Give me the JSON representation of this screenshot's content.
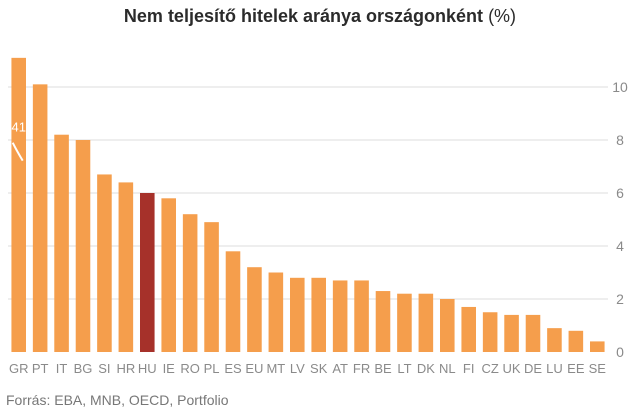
{
  "title": "Nem teljesítő hitelek aránya országonként",
  "title_unit": "(%)",
  "source": "Forrás: EBA, MNB, OECD, Portfolio",
  "colors": {
    "bar": "#f59e4c",
    "highlight": "#a6312a",
    "grid": "#dddddd",
    "tick_text": "#8a8a8a"
  },
  "chart_data": {
    "type": "bar",
    "categories": [
      "GR",
      "PT",
      "IT",
      "BG",
      "SI",
      "HR",
      "HU",
      "IE",
      "RO",
      "PL",
      "ES",
      "EU",
      "MT",
      "LV",
      "SK",
      "AT",
      "FR",
      "BE",
      "LT",
      "DK",
      "NL",
      "FI",
      "CZ",
      "UK",
      "DE",
      "LU",
      "EE",
      "SE"
    ],
    "values": [
      11.1,
      10.1,
      8.2,
      8.0,
      6.7,
      6.4,
      6.0,
      5.8,
      5.2,
      4.9,
      3.8,
      3.2,
      3.0,
      2.8,
      2.8,
      2.7,
      2.7,
      2.3,
      2.2,
      2.2,
      2.0,
      1.7,
      1.5,
      1.4,
      1.4,
      0.9,
      0.8,
      0.4
    ],
    "highlight": "HU",
    "ylim": [
      0,
      12
    ],
    "yticks": [
      0,
      2,
      4,
      6,
      8,
      10
    ],
    "grid": true,
    "y_axis_side": "right",
    "annotation": {
      "label": "41",
      "category": "GR",
      "value": 7.9
    }
  }
}
